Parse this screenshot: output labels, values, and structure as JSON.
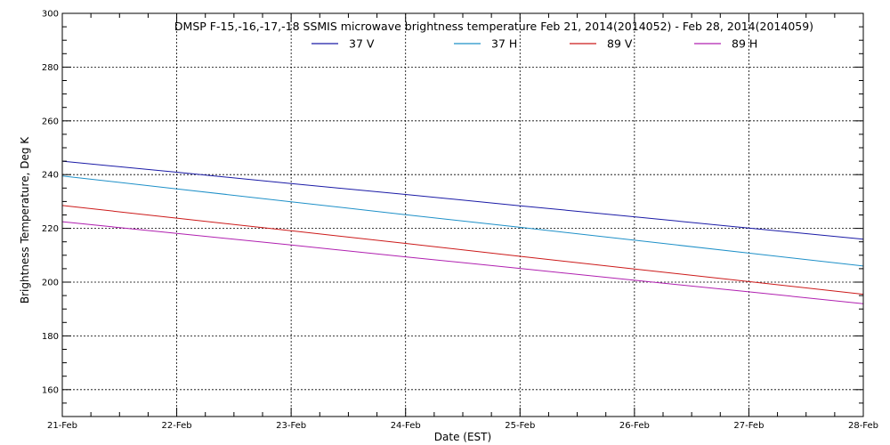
{
  "chart_data": {
    "type": "line",
    "title": "DMSP F-15,-16,-17,-18 SSMIS microwave brightness temperature Feb 21, 2014(2014052) - Feb 28, 2014(2014059)",
    "xlabel": "Date (EST)",
    "ylabel": "Brightness Temperature, Deg K",
    "x": [
      "21-Feb",
      "22-Feb",
      "23-Feb",
      "24-Feb",
      "25-Feb",
      "26-Feb",
      "27-Feb",
      "28-Feb"
    ],
    "ylim": [
      150,
      300
    ],
    "y_ticks": [
      160,
      180,
      200,
      220,
      240,
      260,
      280,
      300
    ],
    "grid": true,
    "legend_position": "top-center",
    "series": [
      {
        "name": "37 V",
        "color": "#1a1aa6",
        "values": [
          245,
          240.9,
          236.7,
          232.6,
          228.4,
          224.3,
          220.1,
          216
        ]
      },
      {
        "name": "37 H",
        "color": "#1e90c8",
        "values": [
          239.5,
          234.7,
          229.9,
          225.1,
          220.4,
          215.6,
          210.8,
          206
        ]
      },
      {
        "name": "89 V",
        "color": "#cc1a1a",
        "values": [
          228.5,
          223.8,
          219.1,
          214.4,
          209.6,
          204.9,
          200.2,
          195.5
        ]
      },
      {
        "name": "89 H",
        "color": "#b020b0",
        "values": [
          222.5,
          218.1,
          213.8,
          209.4,
          205.1,
          200.7,
          196.4,
          192
        ]
      }
    ]
  }
}
